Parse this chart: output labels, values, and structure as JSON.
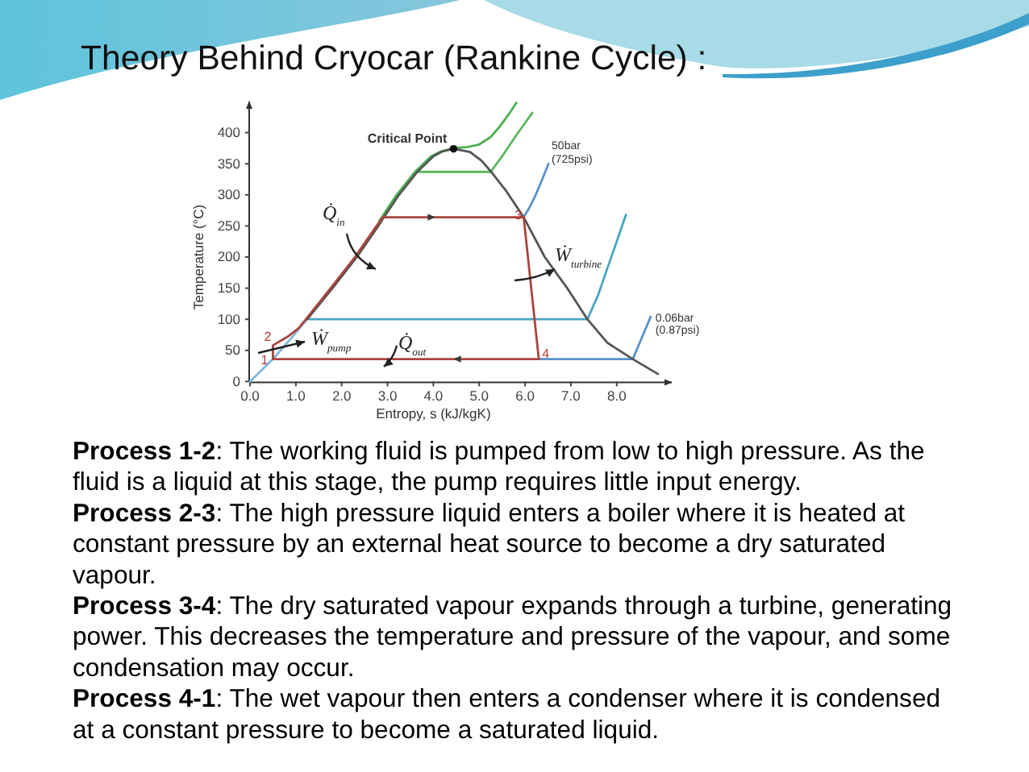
{
  "chart_data": {
    "type": "line",
    "title": "Theory Behind Cryocar (Rankine Cycle) :",
    "xlabel": "Entropy, s (kJ/kgK)",
    "ylabel": "Temperature (°C)",
    "xlim": [
      0,
      9.2
    ],
    "ylim": [
      0,
      450
    ],
    "xticks": [
      {
        "value": 0,
        "label": "0.0"
      },
      {
        "value": 1,
        "label": "1.0"
      },
      {
        "value": 2,
        "label": "2.0"
      },
      {
        "value": 3,
        "label": "3.0"
      },
      {
        "value": 4,
        "label": "4.0"
      },
      {
        "value": 5,
        "label": "5.0"
      },
      {
        "value": 6,
        "label": "6.0"
      },
      {
        "value": 7,
        "label": "7.0"
      },
      {
        "value": 8,
        "label": "8.0"
      }
    ],
    "yticks": [
      0,
      50,
      100,
      150,
      200,
      250,
      300,
      350,
      400
    ],
    "series": [
      {
        "color": "#7db8dc",
        "x": [
          0,
          0.5,
          0.88,
          1.25
        ],
        "values": [
          0,
          36,
          68,
          100
        ]
      },
      {
        "color": "#4aa6c2",
        "x": [
          1.3,
          7.36,
          7.6,
          7.8,
          8.0,
          8.2
        ],
        "values": [
          100,
          100,
          140,
          183,
          225,
          268
        ]
      },
      {
        "name": "0.06bar (0.87psi)",
        "color": "#5a92cc",
        "x": [
          6.3,
          8.35,
          8.5,
          8.62,
          8.74
        ],
        "values": [
          36,
          36,
          62,
          83,
          104
        ]
      },
      {
        "name": "50bar (725psi)",
        "color": "#5a92cc",
        "x": [
          5.97,
          6.1,
          6.22,
          6.36,
          6.51
        ],
        "values": [
          264,
          280,
          298,
          322,
          350
        ]
      },
      {
        "color": "#4caf50",
        "x": [
          2.82,
          3.2,
          3.6,
          3.95,
          4.17,
          4.44,
          4.75,
          5.0,
          5.25,
          5.45,
          5.65,
          5.81
        ],
        "values": [
          258,
          300,
          337,
          362,
          370,
          375,
          377,
          381,
          393,
          410,
          430,
          448
        ]
      },
      {
        "color": "#5cb85c",
        "x": [
          3.6,
          5.25,
          5.5,
          5.8,
          6.16
        ],
        "values": [
          337,
          337,
          362,
          395,
          432
        ]
      },
      {
        "color": "#555555",
        "x": [
          1.25,
          1.8,
          2.33,
          2.8,
          2.92,
          3.25,
          3.65,
          4.0,
          4.2,
          4.44,
          4.8,
          5.05,
          5.25,
          5.6,
          5.97,
          6.43,
          6.92,
          7.36,
          7.8,
          8.35,
          8.9
        ],
        "values": [
          100,
          150,
          200,
          250,
          264,
          300,
          337,
          362,
          370,
          374,
          369,
          355,
          338,
          305,
          264,
          200,
          150,
          100,
          62,
          36,
          12
        ]
      },
      {
        "color": "#a8453d",
        "x": [
          0.5,
          0.5,
          0.82,
          1.05,
          1.21,
          1.76,
          2.29,
          2.76,
          2.9,
          5.97
        ],
        "values": [
          36,
          58,
          72,
          85,
          99,
          150,
          200,
          250,
          264,
          264
        ]
      },
      {
        "color": "#a8453d",
        "x": [
          5.97,
          6.3
        ],
        "values": [
          264,
          36
        ]
      },
      {
        "color": "#a8453d",
        "x": [
          0.5,
          6.3
        ],
        "values": [
          36,
          36
        ]
      },
      {
        "type": "scatter",
        "name": "Critical Point",
        "color": "#111111",
        "marker": "circle",
        "x": [
          4.44
        ],
        "values": [
          374
        ]
      }
    ],
    "annotations": [
      {
        "text": "1",
        "x": 0.5,
        "y": 36
      },
      {
        "text": "2",
        "x": 0.5,
        "y": 58
      },
      {
        "text": "3",
        "x": 5.97,
        "y": 264
      },
      {
        "text": "4",
        "x": 6.3,
        "y": 36
      },
      "Q̇$_{in}$",
      "Ẇ$_{pump}$",
      "Q̇$_{out}$",
      "Ẇ$_{turbine}$",
      "Process 1-2: The working fluid is pumped from low to high pressure. As the fluid is a liquid at this stage, the pump requires little input energy.",
      "Process 2-3: The high pressure liquid enters a boiler where it is heated at constant pressure by an external heat source to become a dry saturated vapour.",
      "Process 3-4: The dry saturated vapour expands through a turbine, generating power. This decreases the temperature and pressure of the vapour, and some condensation may occur.",
      "Process 4-1: The wet vapour then enters a condenser where it is condensed at a constant pressure to become a saturated liquid."
    ]
  }
}
